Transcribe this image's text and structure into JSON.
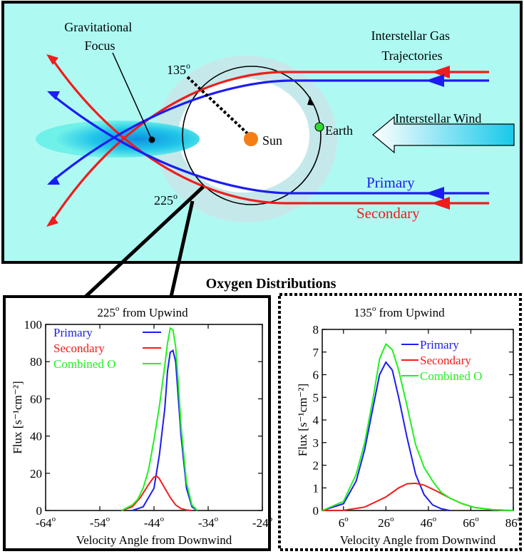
{
  "diagram": {
    "gravitational_focus_label": [
      "Gravitational",
      "Focus"
    ],
    "trajectories_label": [
      "Interstellar Gas",
      "Trajectories"
    ],
    "sun_label": "Sun",
    "earth_label": "Earth",
    "wind_label": "Interstellar Wind",
    "primary_label": "Primary",
    "secondary_label": "Secondary",
    "angle_135": "135",
    "angle_225": "225",
    "degree_mark": "o"
  },
  "section_title": "Oxygen Distributions",
  "colors": {
    "panel_background": "#aefaf3",
    "halo": "#c5e9ea",
    "primary": "#1c1cf2",
    "secondary": "#f01c1c",
    "combined": "#22f022",
    "sun": "#f57d15",
    "earth": "#33d933",
    "focus_cloud": "#0fb7e7"
  },
  "chart_data": [
    {
      "type": "line",
      "title": "225° from Upwind",
      "title_angle": "225",
      "title_text": "from Upwind",
      "xlabel": "Velocity Angle from Downwind",
      "ylabel": "Flux [s⁻¹cm⁻²]",
      "xlim": [
        -64,
        -24
      ],
      "ylim": [
        0,
        100
      ],
      "xticks": [
        -64,
        -54,
        -44,
        -34,
        -24
      ],
      "yticks": [
        0,
        20,
        40,
        60,
        80,
        100
      ],
      "legend_position": "top-left",
      "series": [
        {
          "name": "Primary",
          "color": "#1c1cf2",
          "x": [
            -48,
            -46,
            -44,
            -43,
            -42,
            -41.5,
            -41,
            -40.5,
            -40,
            -39.5,
            -39,
            -38,
            -37,
            -36
          ],
          "y": [
            0,
            2,
            12,
            30,
            55,
            75,
            85,
            86,
            80,
            60,
            40,
            12,
            2,
            0
          ]
        },
        {
          "name": "Secondary",
          "color": "#f01c1c",
          "x": [
            -50,
            -48,
            -46.5,
            -45,
            -44,
            -43.5,
            -43,
            -42,
            -41,
            -40,
            -39,
            -38,
            -37
          ],
          "y": [
            0,
            2,
            7,
            14,
            18,
            18.5,
            17,
            12,
            7,
            3,
            1,
            0.3,
            0
          ]
        },
        {
          "name": "Combined O",
          "color": "#22f022",
          "x": [
            -50,
            -48,
            -47,
            -46,
            -45,
            -44,
            -43,
            -42,
            -41.5,
            -41,
            -40.5,
            -40,
            -39.5,
            -39,
            -38,
            -37,
            -36
          ],
          "y": [
            0,
            3,
            6,
            12,
            22,
            38,
            56,
            78,
            90,
            98,
            97,
            88,
            68,
            45,
            15,
            3,
            0
          ]
        }
      ]
    },
    {
      "type": "line",
      "title": "135° from Upwind",
      "title_angle": "135",
      "title_text": "from Upwind",
      "xlabel": "Velocity Angle from Downwind",
      "ylabel": "Flux [s⁻¹cm⁻²]",
      "xlim": [
        -4,
        86
      ],
      "ylim": [
        0,
        8
      ],
      "xticks": [
        6,
        26,
        46,
        66,
        86
      ],
      "yticks": [
        0,
        1,
        2,
        3,
        4,
        5,
        6,
        7,
        8
      ],
      "legend_position": "top-right",
      "series": [
        {
          "name": "Primary",
          "color": "#1c1cf2",
          "x": [
            -4,
            6,
            12,
            16,
            20,
            23,
            26,
            29,
            32,
            36,
            40,
            44,
            48,
            52,
            56
          ],
          "y": [
            0,
            0.3,
            1.3,
            2.7,
            4.6,
            6.0,
            6.55,
            6.2,
            5.0,
            3.2,
            1.6,
            0.7,
            0.25,
            0.08,
            0
          ]
        },
        {
          "name": "Secondary",
          "color": "#f01c1c",
          "x": [
            -4,
            6,
            16,
            26,
            32,
            36,
            40,
            44,
            50,
            56,
            62,
            68,
            76,
            86
          ],
          "y": [
            0,
            0.01,
            0.15,
            0.6,
            1.0,
            1.18,
            1.2,
            1.12,
            0.85,
            0.55,
            0.3,
            0.13,
            0.04,
            0
          ]
        },
        {
          "name": "Combined O",
          "color": "#22f022",
          "x": [
            -4,
            6,
            12,
            16,
            20,
            23,
            26,
            29,
            32,
            36,
            40,
            44,
            48,
            52,
            56,
            62,
            68,
            76,
            86
          ],
          "y": [
            0,
            0.4,
            1.6,
            3.0,
            5.0,
            6.7,
            7.35,
            7.1,
            6.2,
            4.6,
            2.9,
            1.9,
            1.3,
            0.8,
            0.55,
            0.3,
            0.13,
            0.04,
            0
          ]
        }
      ]
    }
  ]
}
